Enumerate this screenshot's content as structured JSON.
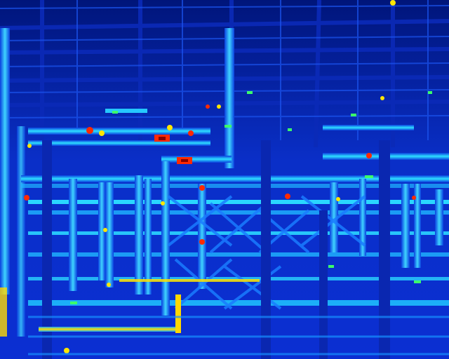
{
  "image": {
    "kind": "thermal-infrared-photo",
    "subject": "industrial-pipe-rack",
    "palette": {
      "cold": "#000a7a",
      "cool": "#0a2fe0",
      "mid": "#1f8bff",
      "warm": "#20e6ff",
      "hot_low": "#3cff6a",
      "hot_mid": "#ffe600",
      "hot_high": "#ff2a00",
      "hottest": "#8b0000"
    }
  }
}
